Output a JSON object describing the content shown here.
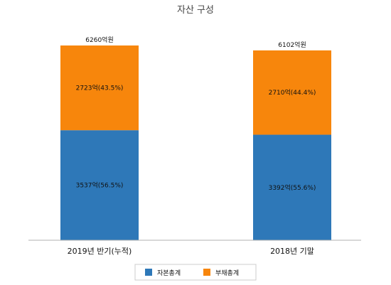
{
  "chart_data": {
    "type": "bar",
    "stacked": true,
    "title": "자산 구성",
    "categories": [
      "2019년 반기(누적)",
      "2018년 기말"
    ],
    "series": [
      {
        "name": "자본총계",
        "color": "#2e78b8",
        "values": [
          3537,
          3392
        ],
        "labels": [
          "3537억(56.5%)",
          "3392억(55.6%)"
        ]
      },
      {
        "name": "부채총계",
        "color": "#f7860c",
        "values": [
          2723,
          2710
        ],
        "labels": [
          "2723억(43.5%)",
          "2710억(44.4%)"
        ]
      }
    ],
    "totals": [
      6260,
      6102
    ],
    "total_labels": [
      "6260억원",
      "6102억원"
    ],
    "legend_position": "bottom",
    "grid": false
  }
}
